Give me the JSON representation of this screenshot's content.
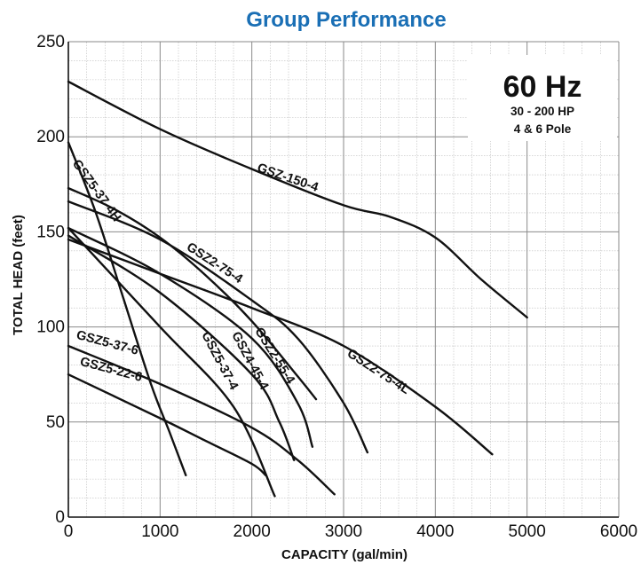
{
  "chart_data": {
    "type": "line",
    "title": "Group Performance",
    "xlabel": "CAPACITY (gal/min)",
    "ylabel": "TOTAL HEAD (feet)",
    "xlim": [
      0,
      6000
    ],
    "ylim": [
      0,
      250
    ],
    "x_ticks": [
      "0",
      "1000",
      "2000",
      "3000",
      "4000",
      "5000",
      "6000"
    ],
    "y_ticks": [
      "0",
      "50",
      "100",
      "150",
      "200",
      "250"
    ],
    "grid": true,
    "annotation": {
      "main": "60 Hz",
      "line1": "30 - 200 HP",
      "line2": "4 & 6 Pole"
    },
    "series": [
      {
        "name": "GSZ-150-4",
        "x": [
          0,
          1000,
          2000,
          3000,
          3500,
          4000,
          4500,
          5000
        ],
        "y": [
          229,
          204,
          183,
          164,
          158,
          147,
          125,
          105
        ]
      },
      {
        "name": "GSZ5-37-4H",
        "x": [
          0,
          300,
          600,
          900,
          1100,
          1280
        ],
        "y": [
          197,
          160,
          115,
          70,
          45,
          22
        ]
      },
      {
        "name": "GSZ2-75-4",
        "x": [
          0,
          500,
          1000,
          1500,
          2000,
          2500,
          2700
        ],
        "y": [
          173,
          162,
          147,
          127,
          103,
          74,
          62
        ]
      },
      {
        "name": "GSZ2-75-4L",
        "x": [
          0,
          1000,
          2000,
          3000,
          4000,
          4620
        ],
        "y": [
          146,
          128,
          110,
          90,
          58,
          33
        ]
      },
      {
        "name": "GSZ2-55-4",
        "x": [
          0,
          1000,
          2000,
          2500,
          3000,
          3260
        ],
        "y": [
          166,
          146,
          114,
          94,
          60,
          34
        ]
      },
      {
        "name": "GSZ4-45-4",
        "x": [
          0,
          1000,
          2000,
          2500,
          2660
        ],
        "y": [
          152,
          128,
          94,
          60,
          37
        ]
      },
      {
        "name": "GSZ5-37-4",
        "x": [
          0,
          1000,
          2000,
          2300,
          2460
        ],
        "y": [
          148,
          118,
          75,
          50,
          30
        ]
      },
      {
        "name": "GSZ5-37-6",
        "x": [
          0,
          1000,
          2000,
          2500,
          2900
        ],
        "y": [
          90,
          70,
          47,
          30,
          12
        ]
      },
      {
        "name": "GSZ5-22-6",
        "x": [
          0,
          1000,
          1500,
          2000,
          2150
        ],
        "y": [
          75,
          52,
          40,
          28,
          22
        ]
      },
      {
        "name": "",
        "x": [
          0,
          1000,
          1800,
          2250
        ],
        "y": [
          152,
          100,
          58,
          11
        ]
      }
    ]
  }
}
